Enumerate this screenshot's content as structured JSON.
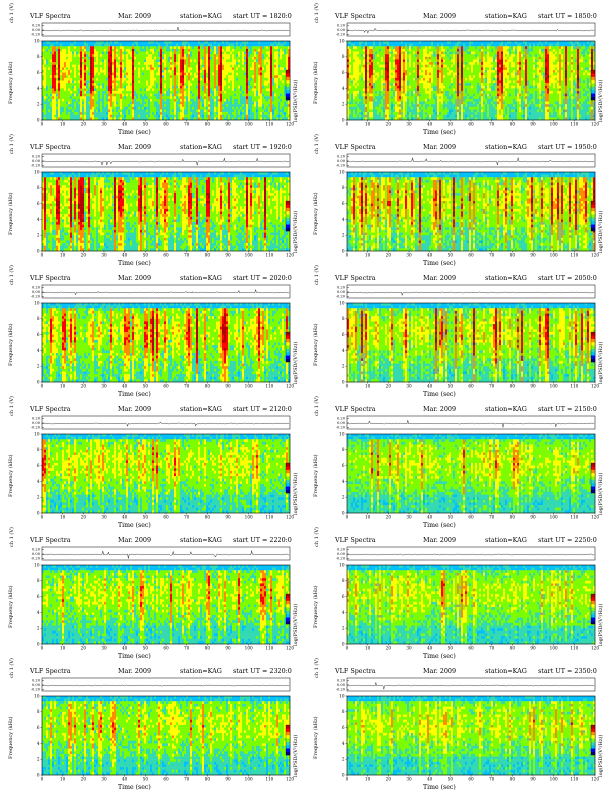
{
  "chart_data": {
    "type": "heatmap",
    "layout": "6 rows x 2 columns",
    "common": {
      "title": "VLF Spectra",
      "month": "Mar. 2009",
      "station": "station=KAG",
      "ut_prefix": "start UT =",
      "waveform_ylabel": "ch 1 (V)",
      "waveform_ticks": [
        "0.20",
        "0.00",
        "-0.20"
      ],
      "freq_ylabel": "Frequency (kHz)",
      "freq_ticks": [
        "0",
        "2",
        "4",
        "6",
        "8",
        "10"
      ],
      "ylim_khz": [
        0,
        10
      ],
      "xlabel": "Time (sec)",
      "x_ticks": [
        "0",
        "10",
        "20",
        "30",
        "40",
        "50",
        "60",
        "70",
        "80",
        "90",
        "100",
        "110",
        "120"
      ],
      "xlim_sec": [
        0,
        120
      ],
      "colorbar_label": "log(PSD/(V²/Hz))",
      "colormap": [
        "#00007f",
        "#0000ff",
        "#00bfff",
        "#33d9b2",
        "#7cfc00",
        "#ffff00",
        "#ff8c00",
        "#ff0000",
        "#b30000"
      ]
    },
    "panels": [
      {
        "ut": "1820:0",
        "activity": 0.85
      },
      {
        "ut": "1850:0",
        "activity": 0.85
      },
      {
        "ut": "1920:0",
        "activity": 0.9
      },
      {
        "ut": "1950:0",
        "activity": 0.9
      },
      {
        "ut": "2020:0",
        "activity": 0.85
      },
      {
        "ut": "2050:0",
        "activity": 0.8
      },
      {
        "ut": "2120:0",
        "activity": 0.55
      },
      {
        "ut": "2150:0",
        "activity": 0.55
      },
      {
        "ut": "2220:0",
        "activity": 0.55
      },
      {
        "ut": "2250:0",
        "activity": 0.5
      },
      {
        "ut": "2320:0",
        "activity": 0.5
      },
      {
        "ut": "2350:0",
        "activity": 0.5
      }
    ]
  }
}
